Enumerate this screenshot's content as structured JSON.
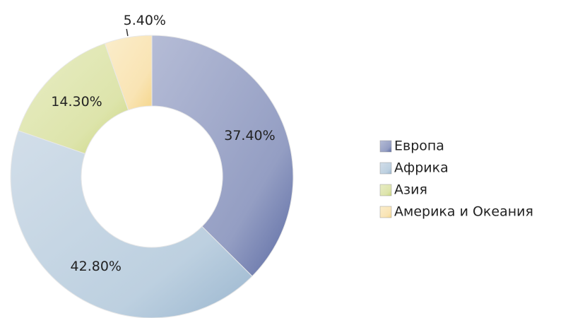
{
  "chart_data": {
    "type": "pie",
    "donut": true,
    "categories": [
      "Европа",
      "Африка",
      "Азия",
      "Америка и Океания"
    ],
    "values": [
      37.4,
      42.8,
      14.3,
      5.4
    ],
    "value_labels": [
      "37.40%",
      "42.80%",
      "14.30%",
      "5.40%"
    ],
    "colors": [
      "#5b6aa3",
      "#9ab6cf",
      "#cbd67e",
      "#f5d68c"
    ],
    "legend": "right"
  }
}
